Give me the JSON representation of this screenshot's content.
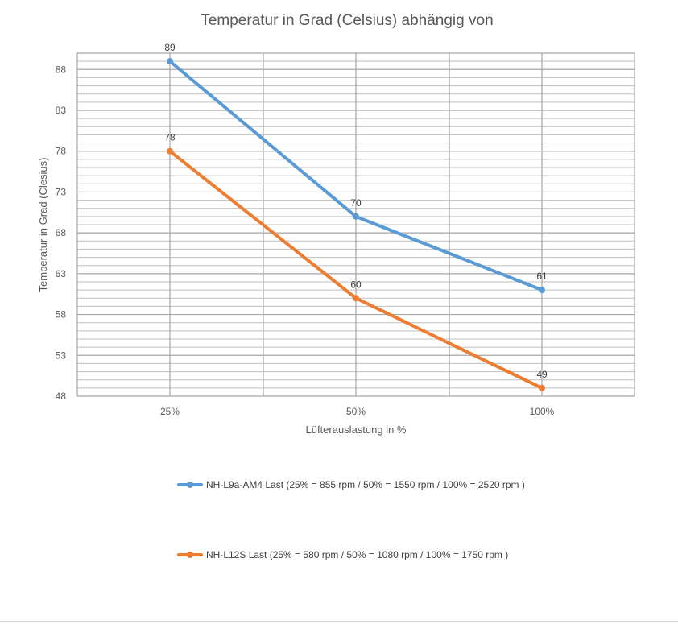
{
  "chart_data": {
    "type": "line",
    "title": "Temperatur in Grad (Celsius) abhängig von",
    "xlabel": "Lüfterauslastung in %",
    "ylabel": "Temperatur in Grad (Clesius)",
    "categories": [
      "25%",
      "50%",
      "100%"
    ],
    "y_ticks": [
      "48",
      "53",
      "58",
      "63",
      "68",
      "73",
      "78",
      "83",
      "88"
    ],
    "ylim": [
      48,
      90
    ],
    "grid": true,
    "legend_position": "bottom",
    "series": [
      {
        "name": "NH-L9a-AM4 Last (25% = 855 rpm / 50% = 1550 rpm / 100% = 2520 rpm )",
        "values": [
          89,
          70,
          61
        ],
        "labels": [
          "89",
          "70",
          "61"
        ],
        "color": "#5b9bd5"
      },
      {
        "name": "NH-L12S Last (25% = 580 rpm / 50% = 1080 rpm / 100% = 1750 rpm )",
        "values": [
          78,
          60,
          49
        ],
        "labels": [
          "78",
          "60",
          "49"
        ],
        "color": "#ed7d31"
      }
    ]
  }
}
